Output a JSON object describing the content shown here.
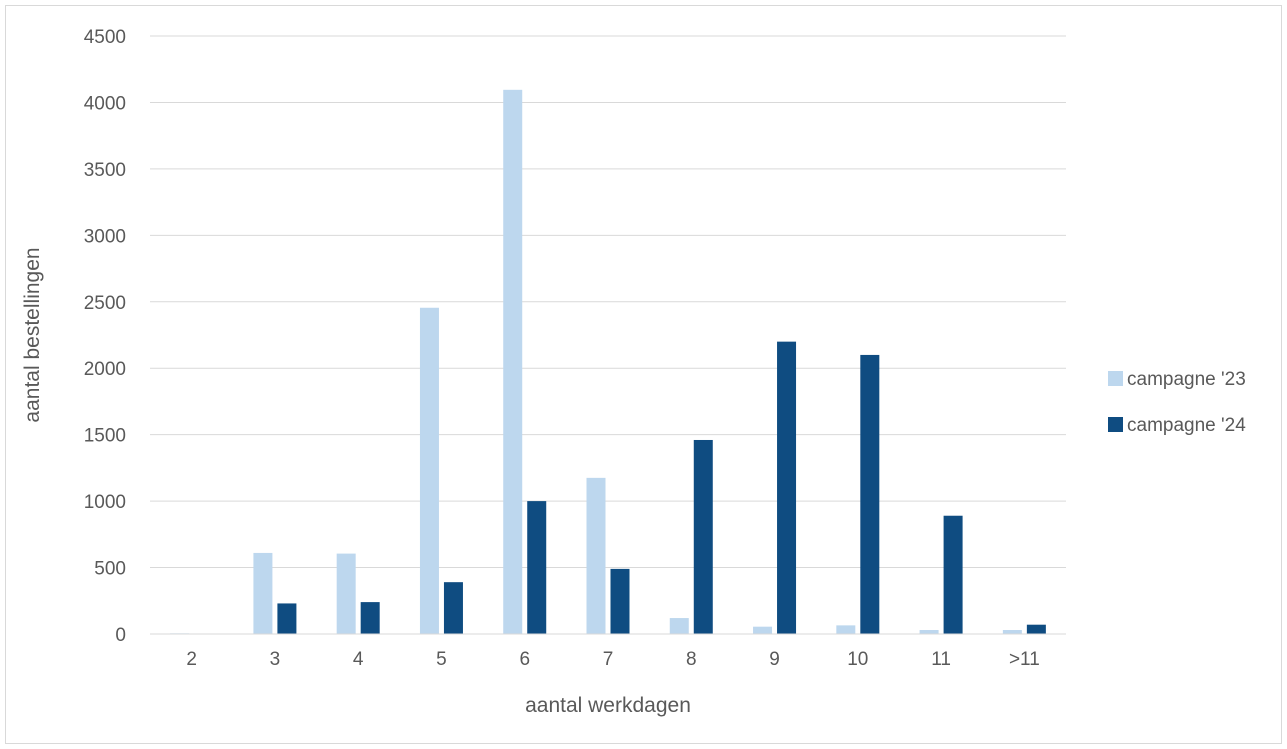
{
  "chart_data": {
    "type": "bar",
    "xlabel": "aantal werkdagen",
    "ylabel": "aantal bestellingen",
    "ylim": [
      0,
      4500
    ],
    "yticks": [
      0,
      500,
      1000,
      1500,
      2000,
      2500,
      3000,
      3500,
      4000,
      4500
    ],
    "grid": true,
    "legend_position": "right",
    "categories": [
      "2",
      "3",
      "4",
      "5",
      "6",
      "7",
      "8",
      "9",
      "10",
      "11",
      ">11"
    ],
    "series": [
      {
        "name": "campagne '23",
        "color": "#bdd7ee",
        "values": [
          5,
          610,
          605,
          2455,
          4095,
          1175,
          120,
          55,
          65,
          30,
          30
        ]
      },
      {
        "name": "campagne '24",
        "color": "#0f4c81",
        "values": [
          0,
          230,
          240,
          390,
          1000,
          490,
          1460,
          2200,
          2100,
          890,
          70
        ]
      }
    ]
  }
}
